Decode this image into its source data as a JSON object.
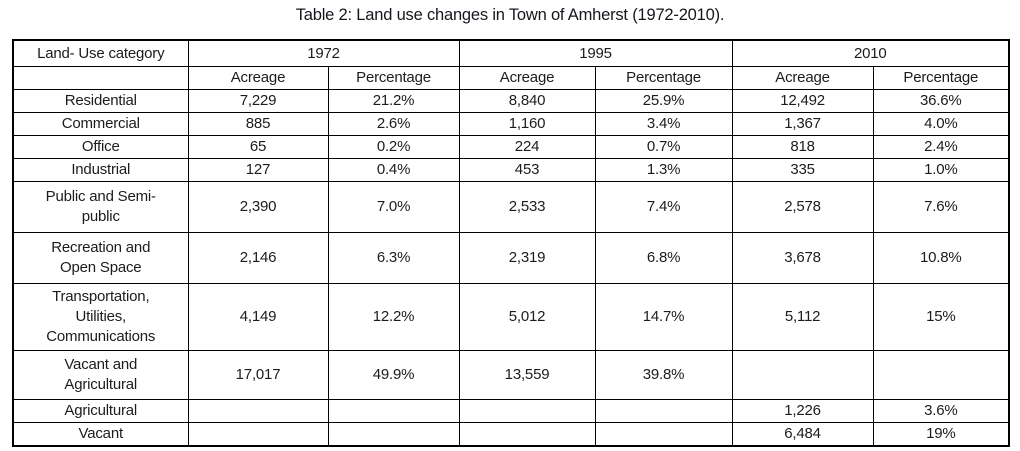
{
  "caption": "Table 2: Land use changes in Town of Amherst (1972-2010).",
  "table": {
    "corner_header": "Land- Use category",
    "year_groups": [
      "1972",
      "1995",
      "2010"
    ],
    "sub_headers": [
      "Acreage",
      "Percentage"
    ],
    "rows": [
      {
        "category": "Residential",
        "cells": [
          "7,229",
          "21.2%",
          "8,840",
          "25.9%",
          "12,492",
          "36.6%"
        ]
      },
      {
        "category": "Commercial",
        "cells": [
          "885",
          "2.6%",
          "1,160",
          "3.4%",
          "1,367",
          "4.0%"
        ]
      },
      {
        "category": "Office",
        "cells": [
          "65",
          "0.2%",
          "224",
          "0.7%",
          "818",
          "2.4%"
        ]
      },
      {
        "category": "Industrial",
        "cells": [
          "127",
          "0.4%",
          "453",
          "1.3%",
          "335",
          "1.0%"
        ]
      },
      {
        "category": "Public and Semi-\npublic",
        "cells": [
          "2,390",
          "7.0%",
          "2,533",
          "7.4%",
          "2,578",
          "7.6%"
        ]
      },
      {
        "category": "Recreation and\nOpen Space",
        "cells": [
          "2,146",
          "6.3%",
          "2,319",
          "6.8%",
          "3,678",
          "10.8%"
        ]
      },
      {
        "category": "Transportation,\nUtilities,\nCommunications",
        "cells": [
          "4,149",
          "12.2%",
          "5,012",
          "14.7%",
          "5,112",
          "15%"
        ]
      },
      {
        "category": "Vacant and\nAgricultural",
        "cells": [
          "17,017",
          "49.9%",
          "13,559",
          "39.8%",
          "",
          ""
        ]
      },
      {
        "category": "Agricultural",
        "cells": [
          "",
          "",
          "",
          "",
          "1,226",
          "3.6%"
        ]
      },
      {
        "category": "Vacant",
        "cells": [
          "",
          "",
          "",
          "",
          "6,484",
          "19%"
        ]
      }
    ]
  },
  "colors": {
    "border": "#000000",
    "text": "#1c1c1c",
    "background": "#ffffff"
  }
}
